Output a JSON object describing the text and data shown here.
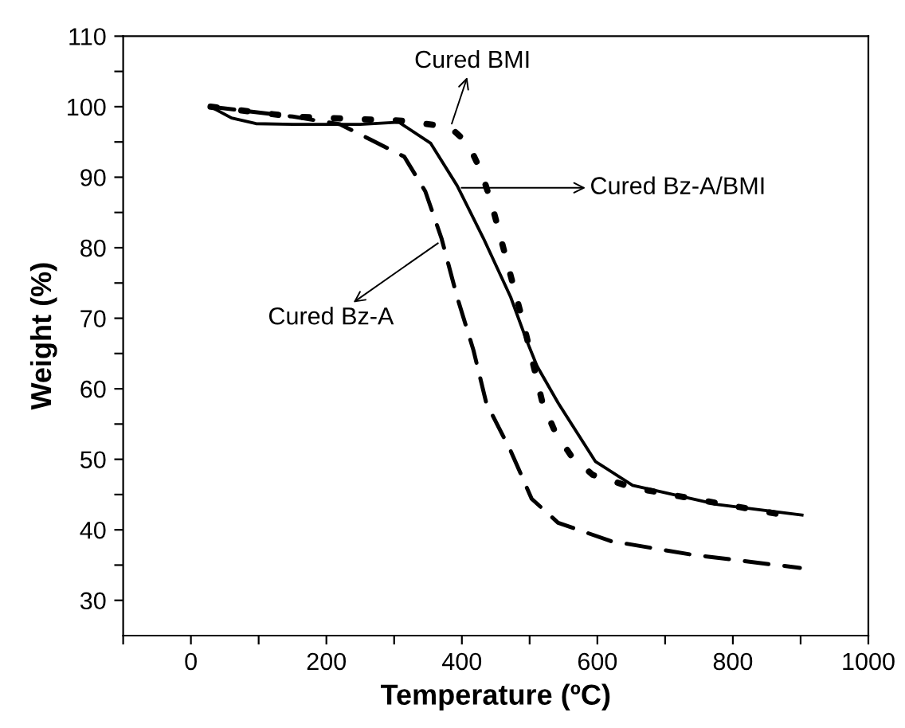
{
  "chart_data": {
    "type": "line",
    "xlabel": "Temperature (ºC)",
    "ylabel": "Weight (%)",
    "xlim": [
      -100,
      1000
    ],
    "ylim": [
      25,
      110
    ],
    "xticks": [
      {
        "value": -100,
        "label": null
      },
      0,
      {
        "value": 100,
        "label": null
      },
      200,
      {
        "value": 300,
        "label": null
      },
      400,
      {
        "value": 500,
        "label": null
      },
      600,
      {
        "value": 700,
        "label": null
      },
      800,
      {
        "value": 900,
        "label": null
      },
      1000
    ],
    "yticks": [
      30,
      {
        "value": 35,
        "label": null
      },
      40,
      {
        "value": 45,
        "label": null
      },
      50,
      {
        "value": 55,
        "label": null
      },
      60,
      {
        "value": 65,
        "label": null
      },
      70,
      {
        "value": 75,
        "label": null
      },
      80,
      {
        "value": 85,
        "label": null
      },
      90,
      {
        "value": 95,
        "label": null
      },
      100,
      {
        "value": 105,
        "label": null
      },
      110
    ],
    "grid": false,
    "legend": false,
    "marker": "none",
    "series": [
      {
        "color": "#000000",
        "line_style": "solid",
        "x": [
          29,
          60,
          96,
          150,
          250,
          307,
          354,
          393,
          432,
          472,
          495,
          511,
          542,
          597,
          652,
          777,
          902
        ],
        "values": [
          100,
          98.4,
          97.6,
          97.5,
          97.5,
          97.8,
          94.8,
          88.8,
          81.3,
          73,
          67,
          63.2,
          58,
          49.7,
          46.3,
          43.6,
          42.1
        ]
      },
      {
        "color": "#000000",
        "line_style": "dotted",
        "x": [
          29,
          150,
          315,
          382,
          409,
          429,
          444,
          468,
          491,
          519,
          538,
          562,
          593,
          652,
          730,
          887
        ],
        "values": [
          100,
          98.6,
          98,
          97.1,
          94.8,
          90.7,
          86.2,
          77.5,
          69.2,
          58,
          53.8,
          50.4,
          47.8,
          46,
          44.6,
          41.9
        ]
      },
      {
        "color": "#000000",
        "line_style": "dashed",
        "x": [
          29,
          150,
          220,
          268,
          315,
          346,
          370,
          393,
          417,
          436,
          472,
          503,
          542,
          620,
          738,
          899
        ],
        "values": [
          100,
          98.6,
          97.5,
          95.2,
          92.9,
          88,
          81.3,
          73,
          65.5,
          58,
          51.2,
          44.4,
          41,
          38.4,
          36.5,
          34.6
        ]
      }
    ],
    "annotations": [
      {
        "text": "Cured BMI",
        "x": 383,
        "y": 97
      },
      {
        "text": "Cured Bz-A/BMI",
        "x": 393,
        "y": 88.5
      },
      {
        "text": "Cured Bz-A",
        "x": 370,
        "y": 81
      }
    ]
  }
}
